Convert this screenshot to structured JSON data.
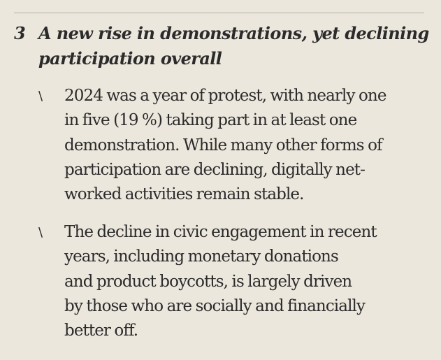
{
  "section": {
    "number": "3",
    "title": "A new rise in demonstrations, yet declining\nparticipation overall"
  },
  "bullets": [
    {
      "marker": "\\",
      "text": "2024 was a year of protest, with nearly one\nin five (19 %) taking part in at least one\ndemonstration. While many other forms of\nparticipation are declining, digitally net-\nworked activities remain stable."
    },
    {
      "marker": "\\",
      "text": "The decline in civic engagement in recent\nyears, including monetary donations\nand product boycotts, is largely driven\nby those who are socially and financially\nbetter off."
    }
  ],
  "colors": {
    "background": "#ece7dd",
    "text": "#2b2b2b",
    "rule": "#b5b0a6"
  }
}
